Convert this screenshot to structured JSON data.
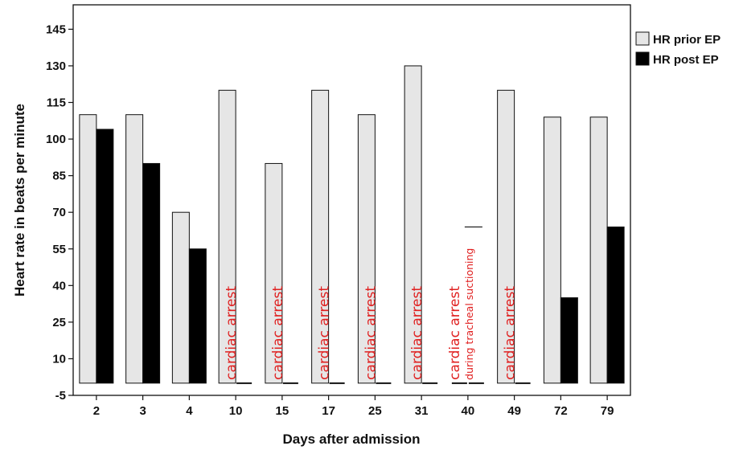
{
  "chart_data": {
    "type": "bar",
    "xlabel": "Days after admission",
    "ylabel": "Heart rate in beats per minute",
    "ylim": [
      -5,
      155
    ],
    "yticks": [
      -5,
      10,
      25,
      40,
      55,
      70,
      85,
      100,
      115,
      130,
      145
    ],
    "categories": [
      "2",
      "3",
      "4",
      "10",
      "15",
      "17",
      "25",
      "31",
      "40",
      "49",
      "72",
      "79"
    ],
    "series": [
      {
        "name": "HR prior EP",
        "color": "#e6e6e6",
        "values": [
          110,
          110,
          70,
          120,
          90,
          120,
          110,
          130,
          0,
          120,
          109,
          109
        ]
      },
      {
        "name": "HR post EP",
        "color": "#000000",
        "values": [
          104,
          90,
          55,
          0,
          0,
          0,
          0,
          0,
          0,
          0,
          35,
          64
        ]
      }
    ],
    "legend_position": "top-right",
    "annotations": [
      {
        "category": "10",
        "text": "cardiac arrest"
      },
      {
        "category": "15",
        "text": "cardiac arrest"
      },
      {
        "category": "17",
        "text": "cardiac arrest"
      },
      {
        "category": "25",
        "text": "cardiac arrest"
      },
      {
        "category": "31",
        "text": "cardiac arrest"
      },
      {
        "category": "40",
        "text": "cardiac arrest",
        "subtext": "during tracheal suctioning",
        "marker_value": 64
      },
      {
        "category": "49",
        "text": "cardiac arrest"
      }
    ],
    "annotation_color": "#e02020"
  }
}
